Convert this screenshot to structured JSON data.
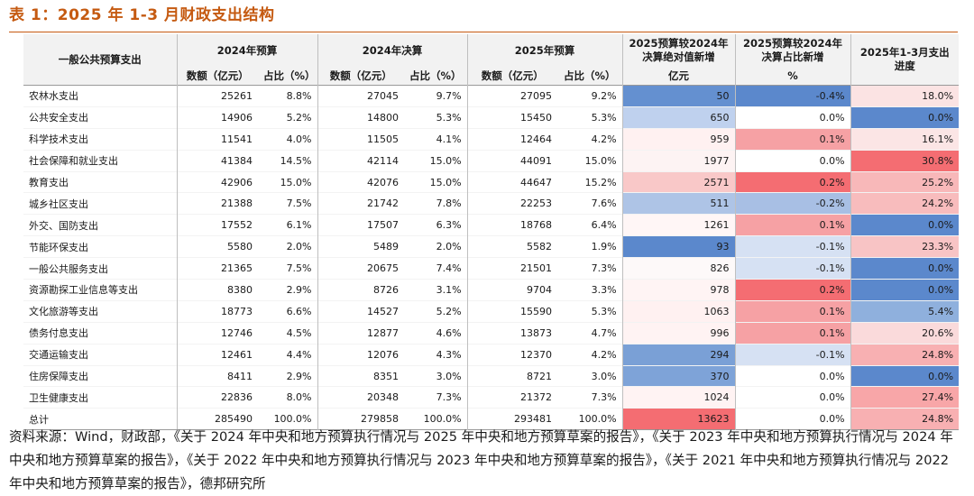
{
  "title": "表 1：2025 年 1-3 月财政支出结构",
  "header": {
    "category": "一般公共预算支出",
    "g2024_budget": "2024年预算",
    "g2024_final": "2024年决算",
    "g2025_budget": "2025年预算",
    "abs_change": "2025预算较2024年决算绝对值新增",
    "share_change": "2025预算较2024年决算占比新增",
    "progress": "2025年1-3月支出进度",
    "amount": "数额（亿元）",
    "share": "占比（%）",
    "abs_unit": "亿元",
    "pct_unit": "%"
  },
  "rows": [
    {
      "name": "农林水支出",
      "b24": "25261",
      "b24p": "8.8%",
      "f24": "27045",
      "f24p": "9.7%",
      "b25": "27095",
      "b25p": "9.2%",
      "abs": "50",
      "sh": "-0.4%",
      "prog": "18.0%"
    },
    {
      "name": "公共安全支出",
      "b24": "14906",
      "b24p": "5.2%",
      "f24": "14800",
      "f24p": "5.3%",
      "b25": "15450",
      "b25p": "5.3%",
      "abs": "650",
      "sh": "0.0%",
      "prog": "0.0%"
    },
    {
      "name": "科学技术支出",
      "b24": "11541",
      "b24p": "4.0%",
      "f24": "11505",
      "f24p": "4.1%",
      "b25": "12464",
      "b25p": "4.2%",
      "abs": "959",
      "sh": "0.1%",
      "prog": "16.1%"
    },
    {
      "name": "社会保障和就业支出",
      "b24": "41384",
      "b24p": "14.5%",
      "f24": "42114",
      "f24p": "15.0%",
      "b25": "44091",
      "b25p": "15.0%",
      "abs": "1977",
      "sh": "0.0%",
      "prog": "30.8%"
    },
    {
      "name": "教育支出",
      "b24": "42906",
      "b24p": "15.0%",
      "f24": "42076",
      "f24p": "15.0%",
      "b25": "44647",
      "b25p": "15.2%",
      "abs": "2571",
      "sh": "0.2%",
      "prog": "25.2%"
    },
    {
      "name": "城乡社区支出",
      "b24": "21388",
      "b24p": "7.5%",
      "f24": "21742",
      "f24p": "7.8%",
      "b25": "22253",
      "b25p": "7.6%",
      "abs": "511",
      "sh": "-0.2%",
      "prog": "24.2%"
    },
    {
      "name": "外交、国防支出",
      "b24": "17552",
      "b24p": "6.1%",
      "f24": "17507",
      "f24p": "6.3%",
      "b25": "18768",
      "b25p": "6.4%",
      "abs": "1261",
      "sh": "0.1%",
      "prog": "0.0%"
    },
    {
      "name": "节能环保支出",
      "b24": "5580",
      "b24p": "2.0%",
      "f24": "5489",
      "f24p": "2.0%",
      "b25": "5582",
      "b25p": "1.9%",
      "abs": "93",
      "sh": "-0.1%",
      "prog": "23.3%"
    },
    {
      "name": "一般公共服务支出",
      "b24": "21365",
      "b24p": "7.5%",
      "f24": "20675",
      "f24p": "7.4%",
      "b25": "21501",
      "b25p": "7.3%",
      "abs": "826",
      "sh": "-0.1%",
      "prog": "0.0%"
    },
    {
      "name": "资源勘探工业信息等支出",
      "b24": "8380",
      "b24p": "2.9%",
      "f24": "8726",
      "f24p": "3.1%",
      "b25": "9704",
      "b25p": "3.3%",
      "abs": "978",
      "sh": "0.2%",
      "prog": "0.0%"
    },
    {
      "name": "文化旅游等支出",
      "b24": "18773",
      "b24p": "6.6%",
      "f24": "14527",
      "f24p": "5.2%",
      "b25": "15590",
      "b25p": "5.3%",
      "abs": "1063",
      "sh": "0.1%",
      "prog": "5.4%"
    },
    {
      "name": "债务付息支出",
      "b24": "12746",
      "b24p": "4.5%",
      "f24": "12877",
      "f24p": "4.6%",
      "b25": "13873",
      "b25p": "4.7%",
      "abs": "996",
      "sh": "0.1%",
      "prog": "20.6%"
    },
    {
      "name": "交通运输支出",
      "b24": "12461",
      "b24p": "4.4%",
      "f24": "12076",
      "f24p": "4.3%",
      "b25": "12370",
      "b25p": "4.2%",
      "abs": "294",
      "sh": "-0.1%",
      "prog": "24.8%"
    },
    {
      "name": "住房保障支出",
      "b24": "8411",
      "b24p": "2.9%",
      "f24": "8351",
      "f24p": "3.0%",
      "b25": "8721",
      "b25p": "3.0%",
      "abs": "370",
      "sh": "0.0%",
      "prog": "0.0%"
    },
    {
      "name": "卫生健康支出",
      "b24": "22836",
      "b24p": "8.0%",
      "f24": "20348",
      "f24p": "7.3%",
      "b25": "21372",
      "b25p": "7.3%",
      "abs": "1024",
      "sh": "0.0%",
      "prog": "27.4%"
    },
    {
      "name": "总计",
      "b24": "285490",
      "b24p": "100.0%",
      "f24": "279858",
      "f24p": "100.0%",
      "b25": "293481",
      "b25p": "100.0%",
      "abs": "13623",
      "sh": "0.0%",
      "prog": "24.8%"
    }
  ],
  "colors": {
    "abs": [
      "#6490d0",
      "#bfd1ee",
      "#fff1f1",
      "#fdf3f3",
      "#f9c8c8",
      "#aec4e6",
      "#fff6f6",
      "#5b88cc",
      "#fdf9f9",
      "#fff4f4",
      "#fff1f1",
      "#fff3f3",
      "#7aa0d6",
      "#7ea3d8",
      "#fff3f3",
      "#f46d72"
    ],
    "sh": [
      "#5b88cc",
      "#ffffff",
      "#f6a1a4",
      "#ffffff",
      "#f46d72",
      "#a8bfe4",
      "#f6a1a4",
      "#d6e1f3",
      "#d6e1f3",
      "#f46d72",
      "#f6a1a4",
      "#f6a1a4",
      "#d6e1f3",
      "#ffffff",
      "#ffffff",
      "#ffffff"
    ],
    "prog": [
      "#fbe3e3",
      "#5b88cc",
      "#fbe5e5",
      "#f46d72",
      "#f8b8b9",
      "#f8bcbd",
      "#5b88cc",
      "#f8c4c5",
      "#5b88cc",
      "#5b88cc",
      "#8fb0dd",
      "#fadadb",
      "#f8b0b2",
      "#5b88cc",
      "#f8a6a8",
      "#f8b0b2"
    ]
  },
  "source": "资料来源：Wind，财政部，《关于 2024 年中央和地方预算执行情况与 2025 年中央和地方预算草案的报告》，《关于 2023 年中央和地方预算执行情况与 2024 年中央和地方预算草案的报告》，《关于 2022 年中央和地方预算执行情况与 2023 年中央和地方预算草案的报告》，《关于 2021 年中央和地方预算执行情况与 2022 年中央和地方预算草案的报告》，德邦研究所"
}
